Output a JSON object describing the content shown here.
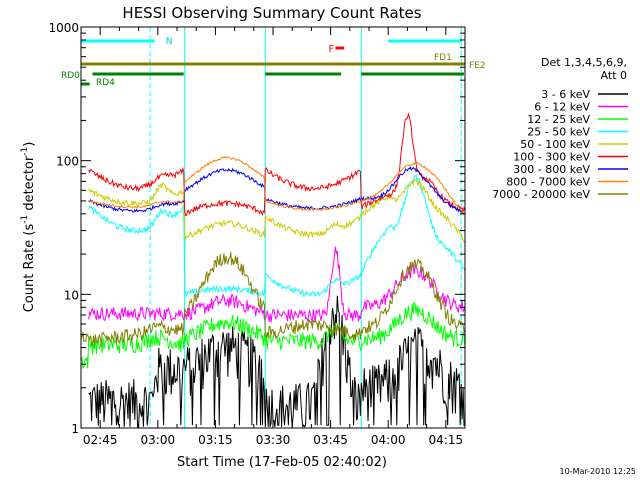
{
  "chart_data": {
    "type": "line",
    "title": "HESSI Observing Summary Count Rates",
    "xlabel": "Start Time (17-Feb-05 02:40:02)",
    "ylabel_main": "Count Rate (s",
    "ylabel_sup1": "-1",
    "ylabel_mid": " detector",
    "ylabel_sup2": "-1",
    "ylabel_end": ")",
    "y_scale": "log",
    "ylim": [
      1,
      1000
    ],
    "xlim_minutes": [
      0,
      100
    ],
    "x_ticks": [
      {
        "label": "02:45",
        "minute": 5
      },
      {
        "label": "03:00",
        "minute": 20
      },
      {
        "label": "03:15",
        "minute": 35
      },
      {
        "label": "03:30",
        "minute": 50
      },
      {
        "label": "03:45",
        "minute": 65
      },
      {
        "label": "04:00",
        "minute": 80
      },
      {
        "label": "04:15",
        "minute": 95
      }
    ],
    "y_ticks": [
      {
        "label": "1",
        "value": 1
      },
      {
        "label": "10",
        "value": 10
      },
      {
        "label": "100",
        "value": 100
      },
      {
        "label": "1000",
        "value": 1000
      }
    ],
    "timestamp": "10-Mar-2010 12:25",
    "legend": {
      "header1": "Det 1,3,4,5,6,9,",
      "header2": "Att 0",
      "placement": "right"
    },
    "series": [
      {
        "name": "3 - 6 keV",
        "color": "#000000"
      },
      {
        "name": "6 - 12 keV",
        "color": "#ff00ff"
      },
      {
        "name": "12 - 25 keV",
        "color": "#00ff00"
      },
      {
        "name": "25 - 50 keV",
        "color": "#00ffff"
      },
      {
        "name": "50 - 100 keV",
        "color": "#cccc00"
      },
      {
        "name": "100 - 300 keV",
        "color": "#ff0000"
      },
      {
        "name": "300 - 800 keV",
        "color": "#0000ff"
      },
      {
        "name": "800 - 7000 keV",
        "color": "#ff8000"
      },
      {
        "name": "7000 - 20000 keV",
        "color": "#808000"
      }
    ],
    "flag_labels": {
      "night": "N",
      "flare": "F",
      "fd1": "FD1",
      "fe2": "FE2",
      "rd0": "RD0",
      "rd4": "RD4"
    },
    "night_intervals_minutes": [
      [
        0,
        20
      ],
      [
        80,
        100
      ]
    ],
    "flare_interval_minutes": [
      66,
      68
    ],
    "rd0_intervals_minutes": [
      [
        3,
        27
      ],
      [
        48,
        68
      ],
      [
        73,
        100
      ]
    ],
    "rd4_intervals_minutes": [
      [
        0,
        2
      ]
    ],
    "saa_boundaries_minutes": [
      0,
      27,
      48,
      73,
      100
    ],
    "night_dashed_minutes": [
      18,
      99
    ]
  }
}
